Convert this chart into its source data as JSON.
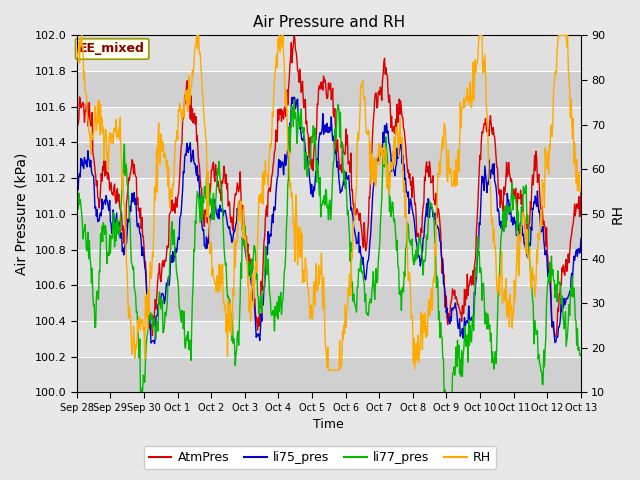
{
  "title": "Air Pressure and RH",
  "xlabel": "Time",
  "ylabel_left": "Air Pressure (kPa)",
  "ylabel_right": "RH",
  "ylim_left": [
    100.0,
    102.0
  ],
  "ylim_right": [
    10,
    90
  ],
  "yticks_left": [
    100.0,
    100.2,
    100.4,
    100.6,
    100.8,
    101.0,
    101.2,
    101.4,
    101.6,
    101.8,
    102.0
  ],
  "yticks_right_labels": [
    10,
    20,
    30,
    40,
    50,
    60,
    70,
    80,
    90
  ],
  "xtick_labels": [
    "Sep 28",
    "Sep 29",
    "Sep 30",
    "Oct 1",
    "Oct 2",
    "Oct 3",
    "Oct 4",
    "Oct 5",
    "Oct 6",
    "Oct 7",
    "Oct 8",
    "Oct 9",
    "Oct 10",
    "Oct 11",
    "Oct 12",
    "Oct 13"
  ],
  "colors": {
    "atmpres": "#dd0000",
    "li75": "#0000cc",
    "li77": "#00bb00",
    "rh": "#ffaa00",
    "bg_figure": "#e8e8e8",
    "band_dark": "#d0d0d0",
    "band_light": "#e0e0e0",
    "grid_line": "#ffffff"
  },
  "legend_labels": [
    "AtmPres",
    "li75_pres",
    "li77_pres",
    "RH"
  ],
  "annotation_text": "EE_mixed",
  "annotation_color": "#8b0000",
  "annotation_bg": "#fffff0"
}
